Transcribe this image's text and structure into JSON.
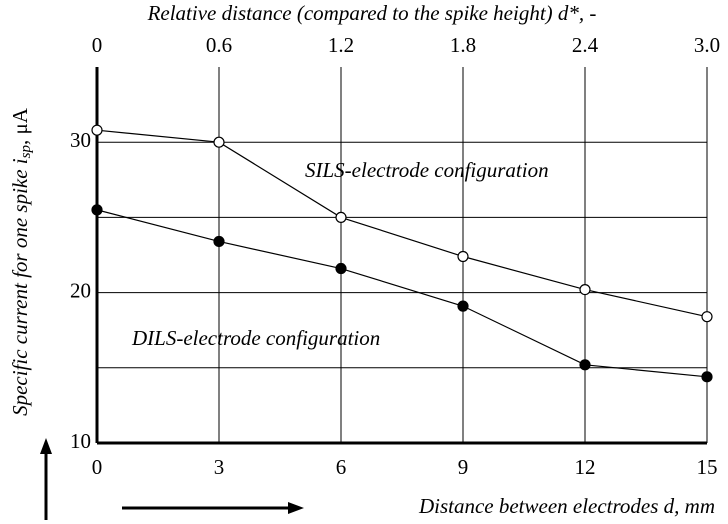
{
  "chart_data": {
    "type": "line",
    "top_axis_label": "Relative distance (compared to the spike height) d*, -",
    "xlabel": "Distance between electrodes d, mm",
    "ylabel": {
      "text": "Specific current for one spike i",
      "sub": "sp",
      "unit": ", μA"
    },
    "x": [
      0,
      3,
      6,
      9,
      12,
      15
    ],
    "series": [
      {
        "name": "SILS-electrode configuration",
        "color": "#000",
        "marker": "open",
        "values": [
          30.8,
          30.0,
          25.0,
          22.4,
          20.2,
          18.4
        ]
      },
      {
        "name": "DILS-electrode configuration",
        "color": "#000",
        "marker": "filled",
        "values": [
          25.5,
          23.4,
          21.6,
          19.1,
          15.2,
          14.4
        ]
      }
    ],
    "xlim": [
      0,
      15
    ],
    "xticks": [
      0,
      3,
      6,
      9,
      12,
      15
    ],
    "x2lim": [
      0,
      3
    ],
    "x2ticks": [
      0,
      0.6,
      1.2,
      1.8,
      2.4,
      {
        "value": 3,
        "label": "3.0"
      }
    ],
    "ylim": [
      10,
      35
    ],
    "yticks": [
      10,
      20,
      30
    ],
    "yminor": [
      15,
      25
    ],
    "grid": true
  }
}
